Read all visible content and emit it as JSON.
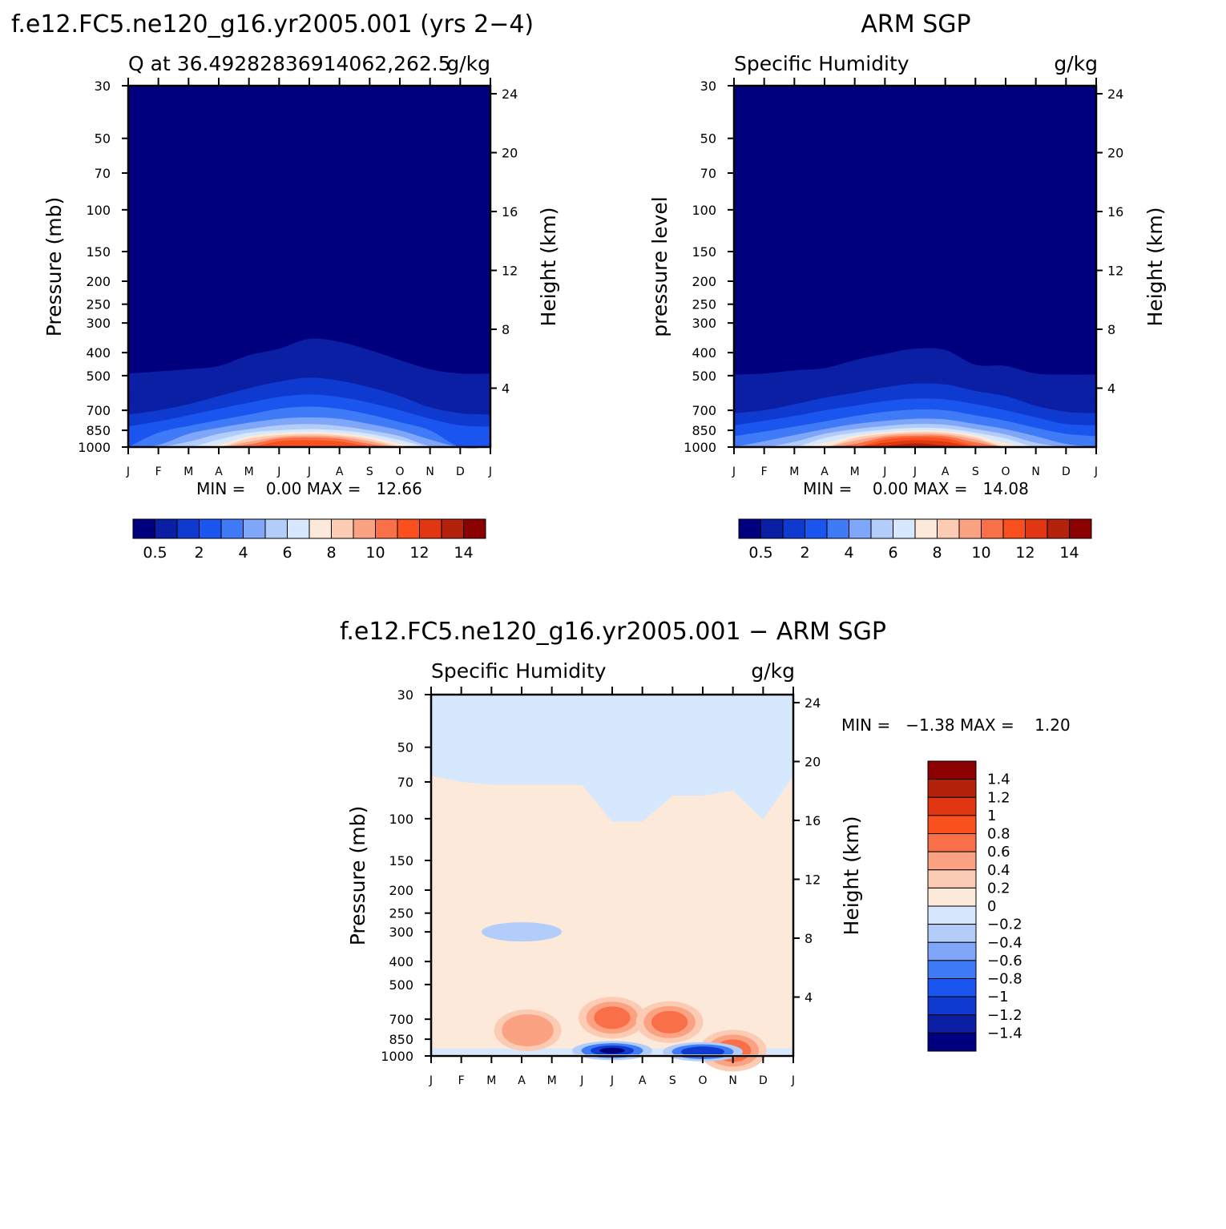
{
  "palette": [
    "#00007f",
    "#0a1fa4",
    "#0f3ad0",
    "#1a55f0",
    "#3f7bf7",
    "#80a6f9",
    "#b3cdfb",
    "#d6e8fd",
    "#fde9d9",
    "#fccbb4",
    "#fba283",
    "#f97048",
    "#f9501e",
    "#e13612",
    "#b5220c",
    "#8b0000"
  ],
  "top_left": {
    "title": "f.e12.FC5.ne120_g16.yr2005.001 (yrs 2−4)",
    "subtitle_left": "Q at 36.49282836914062,262.5",
    "subtitle_right": "g/kg",
    "ylabel": "Pressure (mb)",
    "y2label": "Height (km)",
    "minmax_text": "MIN =    0.00 MAX =   12.66"
  },
  "top_right": {
    "title": "ARM SGP",
    "subtitle_left": "Specific Humidity",
    "subtitle_right": "g/kg",
    "ylabel": "pressure level",
    "y2label": "Height (km)",
    "minmax_text": "MIN =    0.00 MAX =   14.08"
  },
  "bottom": {
    "title": "f.e12.FC5.ne120_g16.yr2005.001 − ARM SGP",
    "subtitle_left": "Specific Humidity",
    "subtitle_right": "g/kg",
    "ylabel": "Pressure (mb)",
    "y2label": "Height (km)",
    "minmax_text": "MIN =   −1.38 MAX =    1.20"
  },
  "chart_data": [
    {
      "type": "heatmap",
      "title": "f.e12.FC5.ne120_g16.yr2005.001 (yrs 2−4)",
      "subtitle": "Q at 36.49282836914062,262.5",
      "units": "g/kg",
      "x_ticks": [
        "J",
        "F",
        "M",
        "A",
        "M",
        "J",
        "J",
        "A",
        "S",
        "O",
        "N",
        "D",
        "J"
      ],
      "y_ticks": [
        30,
        50,
        70,
        100,
        150,
        200,
        250,
        300,
        400,
        500,
        700,
        850,
        1000
      ],
      "y2_ticks": [
        24,
        20,
        16,
        12,
        8,
        4
      ],
      "ylabel": "Pressure (mb)",
      "y2label": "Height (km)",
      "ylim": [
        30,
        1000
      ],
      "colorbar_labels": [
        "0.5",
        "2",
        "4",
        "6",
        "8",
        "10",
        "12",
        "14"
      ],
      "min": 0.0,
      "max": 12.66,
      "contour_tops": [
        {
          "level": 0.5,
          "p": [
            490,
            480,
            470,
            455,
            410,
            385,
            350,
            360,
            390,
            430,
            470,
            490,
            490
          ]
        },
        {
          "level": 1,
          "p": [
            620,
            600,
            565,
            520,
            480,
            460,
            450,
            460,
            480,
            520,
            580,
            610,
            620
          ]
        },
        {
          "level": 2,
          "p": [
            730,
            700,
            660,
            610,
            565,
            530,
            510,
            525,
            560,
            610,
            680,
            720,
            730
          ]
        },
        {
          "level": 3,
          "p": [
            820,
            780,
            735,
            690,
            650,
            615,
            600,
            615,
            650,
            700,
            760,
            810,
            820
          ]
        },
        {
          "level": 4,
          "p": [
            1000,
            870,
            815,
            770,
            730,
            690,
            675,
            690,
            730,
            785,
            850,
            1000,
            1000
          ]
        },
        {
          "level": 5,
          "p": [
            1000,
            980,
            880,
            830,
            790,
            760,
            750,
            760,
            800,
            850,
            930,
            1000,
            1000
          ]
        },
        {
          "level": 6,
          "p": [
            1000,
            1000,
            950,
            880,
            840,
            810,
            800,
            815,
            850,
            900,
            990,
            1000,
            1000
          ]
        },
        {
          "level": 7,
          "p": [
            1000,
            1000,
            1000,
            930,
            870,
            850,
            840,
            850,
            880,
            935,
            1000,
            1000,
            1000
          ]
        },
        {
          "level": 8,
          "p": [
            1000,
            1000,
            1000,
            975,
            900,
            870,
            862,
            872,
            905,
            965,
            1000,
            1000,
            1000
          ]
        },
        {
          "level": 9,
          "p": [
            1000,
            1000,
            1000,
            1000,
            920,
            890,
            880,
            892,
            925,
            990,
            1000,
            1000,
            1000
          ]
        },
        {
          "level": 10,
          "p": [
            1000,
            1000,
            1000,
            1000,
            950,
            905,
            895,
            905,
            945,
            1000,
            1000,
            1000,
            1000
          ]
        },
        {
          "level": 11,
          "p": [
            1000,
            1000,
            1000,
            1000,
            975,
            920,
            910,
            922,
            970,
            1000,
            1000,
            1000,
            1000
          ]
        },
        {
          "level": 12,
          "p": [
            1000,
            1000,
            1000,
            1000,
            1000,
            945,
            935,
            948,
            990,
            1000,
            1000,
            1000,
            1000
          ]
        }
      ]
    },
    {
      "type": "heatmap",
      "title": "ARM SGP",
      "subtitle": "Specific Humidity",
      "units": "g/kg",
      "x_ticks": [
        "J",
        "F",
        "M",
        "A",
        "M",
        "J",
        "J",
        "A",
        "S",
        "O",
        "N",
        "D",
        "J"
      ],
      "y_ticks": [
        30,
        50,
        70,
        100,
        150,
        200,
        250,
        300,
        400,
        500,
        700,
        850,
        1000
      ],
      "y2_ticks": [
        24,
        20,
        16,
        12,
        8,
        4
      ],
      "ylabel": "pressure level",
      "y2label": "Height (km)",
      "ylim": [
        30,
        1000
      ],
      "colorbar_labels": [
        "0.5",
        "2",
        "4",
        "6",
        "8",
        "10",
        "12",
        "14"
      ],
      "min": 0.0,
      "max": 14.08,
      "contour_tops": [
        {
          "level": 0.5,
          "p": [
            495,
            490,
            475,
            465,
            430,
            405,
            385,
            390,
            450,
            455,
            490,
            495,
            495
          ]
        },
        {
          "level": 1,
          "p": [
            620,
            600,
            570,
            540,
            510,
            480,
            465,
            470,
            500,
            520,
            580,
            610,
            620
          ]
        },
        {
          "level": 2,
          "p": [
            720,
            700,
            660,
            620,
            590,
            560,
            540,
            545,
            580,
            610,
            670,
            710,
            720
          ]
        },
        {
          "level": 3,
          "p": [
            810,
            775,
            740,
            700,
            670,
            640,
            625,
            630,
            660,
            700,
            750,
            800,
            810
          ]
        },
        {
          "level": 4,
          "p": [
            900,
            860,
            820,
            780,
            740,
            710,
            695,
            700,
            735,
            775,
            830,
            880,
            900
          ]
        },
        {
          "level": 5,
          "p": [
            1000,
            945,
            890,
            840,
            800,
            775,
            760,
            765,
            800,
            840,
            900,
            970,
            1000
          ]
        },
        {
          "level": 6,
          "p": [
            1000,
            1000,
            950,
            880,
            840,
            815,
            800,
            805,
            840,
            885,
            960,
            1000,
            1000
          ]
        },
        {
          "level": 7,
          "p": [
            1000,
            1000,
            1000,
            915,
            870,
            845,
            830,
            835,
            870,
            920,
            1000,
            1000,
            1000
          ]
        },
        {
          "level": 8,
          "p": [
            1000,
            1000,
            1000,
            960,
            895,
            865,
            850,
            855,
            890,
            960,
            1000,
            1000,
            1000
          ]
        },
        {
          "level": 9,
          "p": [
            1000,
            1000,
            1000,
            1000,
            915,
            880,
            865,
            870,
            910,
            1000,
            1000,
            1000,
            1000
          ]
        },
        {
          "level": 10,
          "p": [
            1000,
            1000,
            1000,
            1000,
            940,
            895,
            880,
            885,
            930,
            1000,
            1000,
            1000,
            1000
          ]
        },
        {
          "level": 11,
          "p": [
            1000,
            1000,
            1000,
            1000,
            970,
            910,
            895,
            900,
            955,
            1000,
            1000,
            1000,
            1000
          ]
        },
        {
          "level": 12,
          "p": [
            1000,
            1000,
            1000,
            1000,
            1000,
            930,
            910,
            920,
            985,
            1000,
            1000,
            1000,
            1000
          ]
        },
        {
          "level": 13,
          "p": [
            1000,
            1000,
            1000,
            1000,
            1000,
            960,
            935,
            950,
            1000,
            1000,
            1000,
            1000,
            1000
          ]
        },
        {
          "level": 14,
          "p": [
            1000,
            1000,
            1000,
            1000,
            1000,
            990,
            965,
            985,
            1000,
            1000,
            1000,
            1000,
            1000
          ]
        }
      ]
    },
    {
      "type": "heatmap",
      "title": "f.e12.FC5.ne120_g16.yr2005.001 − ARM SGP",
      "subtitle": "Specific Humidity",
      "units": "g/kg",
      "x_ticks": [
        "J",
        "F",
        "M",
        "A",
        "M",
        "J",
        "J",
        "A",
        "S",
        "O",
        "N",
        "D",
        "J"
      ],
      "y_ticks": [
        30,
        50,
        70,
        100,
        150,
        200,
        250,
        300,
        400,
        500,
        700,
        850,
        1000
      ],
      "y2_ticks": [
        24,
        20,
        16,
        12,
        8,
        4
      ],
      "ylabel": "Pressure (mb)",
      "y2label": "Height (km)",
      "ylim": [
        30,
        1000
      ],
      "colorbar_labels": [
        "1.4",
        "1.2",
        "1",
        "0.8",
        "0.6",
        "0.4",
        "0.2",
        "0",
        "−0.2",
        "−0.4",
        "−0.6",
        "−0.8",
        "−1",
        "−1.2",
        "−1.4"
      ],
      "min": -1.38,
      "max": 1.2,
      "zero_line_p": [
        66,
        70,
        72,
        72,
        72,
        72,
        103,
        103,
        80,
        80,
        76,
        101,
        66
      ],
      "features": [
        {
          "sign": "positive",
          "month": 3.2,
          "p": 780,
          "peak": 0.6
        },
        {
          "sign": "positive",
          "month": 6.0,
          "p": 690,
          "peak": 0.9
        },
        {
          "sign": "positive",
          "month": 7.9,
          "p": 720,
          "peak": 0.9
        },
        {
          "sign": "positive",
          "month": 10.0,
          "p": 950,
          "peak": 1.0
        },
        {
          "sign": "negative",
          "month": 6.0,
          "p": 950,
          "peak": -1.38
        },
        {
          "sign": "negative",
          "month": 9.0,
          "p": 960,
          "peak": -1.2
        },
        {
          "sign": "negative",
          "month": 3.0,
          "p": 300,
          "peak": -0.2
        }
      ]
    }
  ]
}
